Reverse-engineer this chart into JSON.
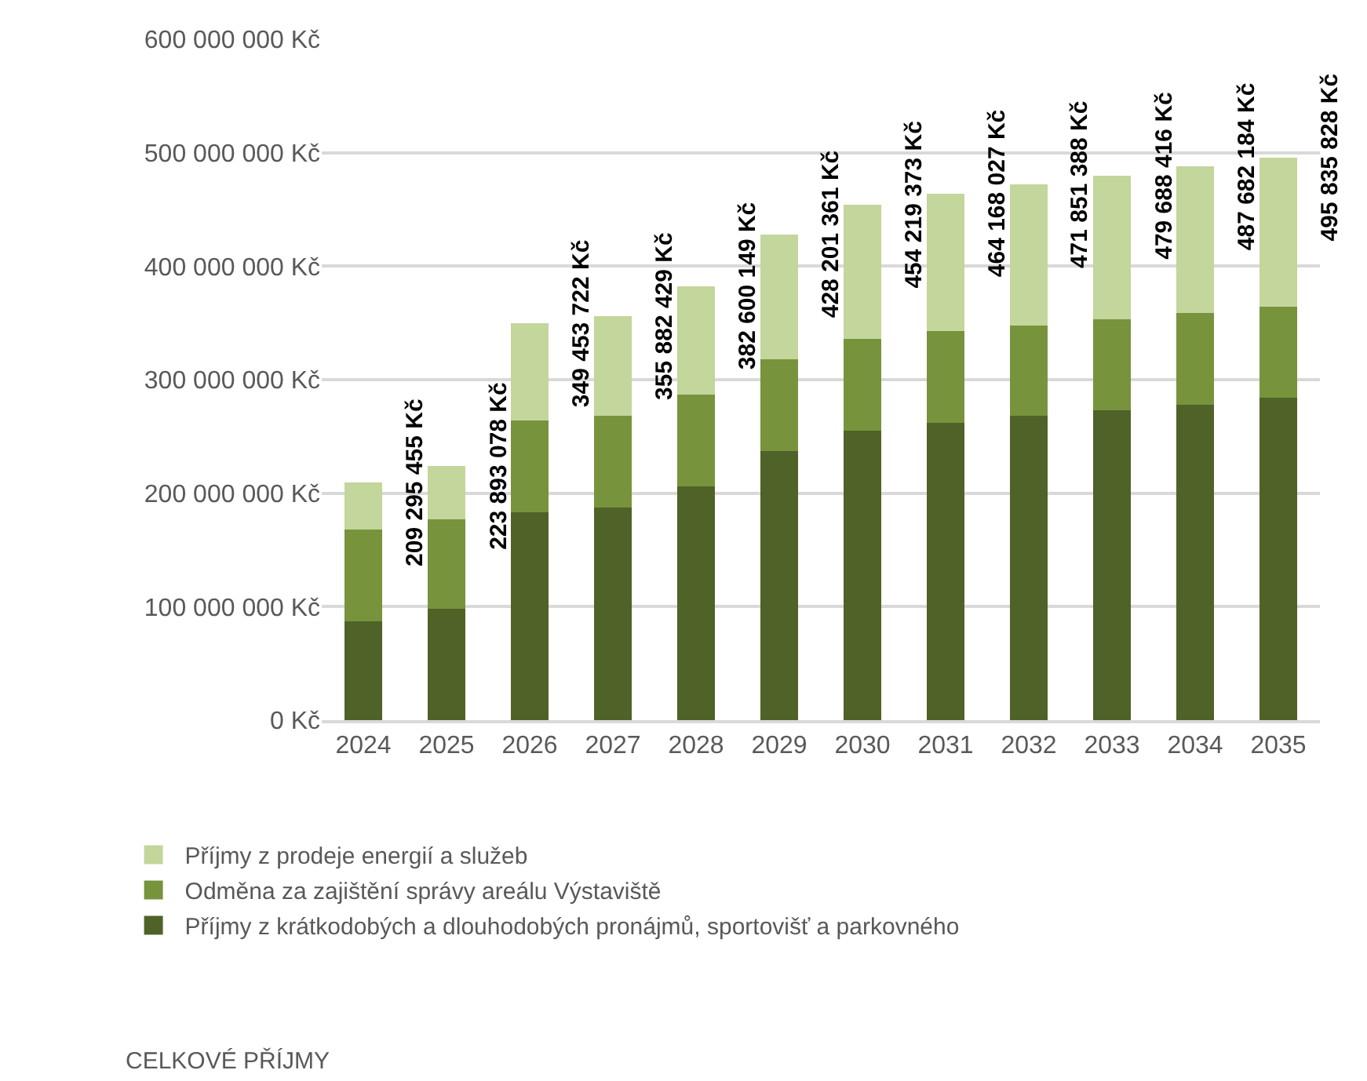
{
  "chart_data": {
    "type": "bar",
    "stacked": true,
    "categories": [
      "2024",
      "2025",
      "2026",
      "2027",
      "2028",
      "2029",
      "2030",
      "2031",
      "2032",
      "2033",
      "2034",
      "2035"
    ],
    "series": [
      {
        "name": "Příjmy z krátkodobých a dlouhodobých pronájmů, sportovišť a parkovného",
        "color": "#4f6228",
        "values": [
          87000000,
          98000000,
          183000000,
          187000000,
          206000000,
          237000000,
          255000000,
          262000000,
          268000000,
          273000000,
          278000000,
          284000000
        ]
      },
      {
        "name": "Odměna za zajištění správy areálu Výstaviště",
        "color": "#77933c",
        "values": [
          81000000,
          79000000,
          81000000,
          81000000,
          81000000,
          81000000,
          81000000,
          81000000,
          80000000,
          80000000,
          81000000,
          80000000
        ]
      },
      {
        "name": "Příjmy z prodeje energií a služeb",
        "color": "#c3d69b",
        "values": [
          41295455,
          46893078,
          85453722,
          87882429,
          95600149,
          110201361,
          118219373,
          121168027,
          123851388,
          126688416,
          128682184,
          131835828
        ]
      }
    ],
    "totals": [
      "209 295 455 Kč",
      "223 893 078 Kč",
      "349 453 722 Kč",
      "355 882 429 Kč",
      "382 600 149 Kč",
      "428 201 361 Kč",
      "454 219 373 Kč",
      "464 168 027 Kč",
      "471 851 388 Kč",
      "479 688 416 Kč",
      "487 682 184 Kč",
      "495 835 828 Kč"
    ],
    "ylim": [
      0,
      600000000
    ],
    "yticks": [
      {
        "value": 0,
        "label": "0 Kč"
      },
      {
        "value": 100000000,
        "label": "100 000 000 Kč"
      },
      {
        "value": 200000000,
        "label": "200 000 000 Kč"
      },
      {
        "value": 300000000,
        "label": "300 000 000 Kč"
      },
      {
        "value": 400000000,
        "label": "400 000 000 Kč"
      },
      {
        "value": 500000000,
        "label": "500 000 000 Kč"
      },
      {
        "value": 600000000,
        "label": "600 000 000 Kč"
      }
    ],
    "grid": "y",
    "legend": "bottom",
    "annotations": [
      "CELKOVÉ PŘÍJMY"
    ]
  }
}
